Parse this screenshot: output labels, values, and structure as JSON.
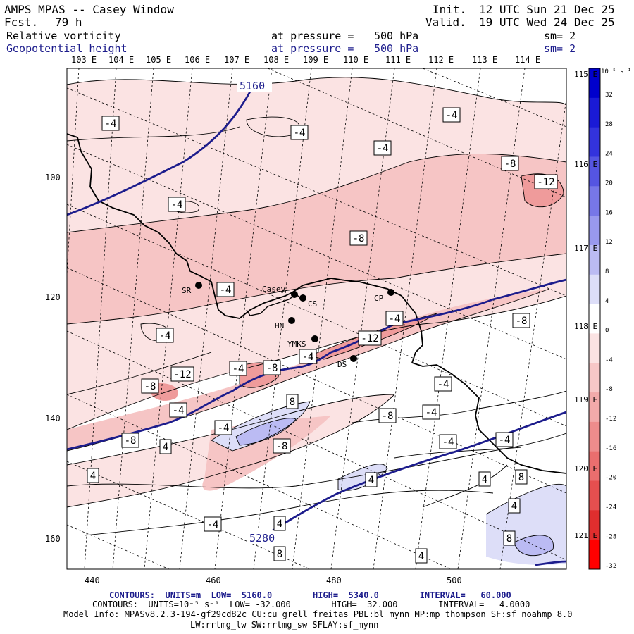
{
  "header": {
    "title": "AMPS MPAS -- Casey Window",
    "forecast_label": "Fcst.",
    "forecast_value": "79 h",
    "init_label": "Init.",
    "init_value": "12 UTC Sun 21 Dec 25",
    "valid_label": "Valid.",
    "valid_value": "19 UTC Wed 24 Dec 25"
  },
  "fields": [
    {
      "name": "Relative vorticity",
      "level_label": "at pressure =",
      "level": "500 hPa",
      "smoothing": "sm= 2",
      "color": "#000000"
    },
    {
      "name": "Geopotential height",
      "level_label": "at pressure =",
      "level": "500 hPa",
      "smoothing": "sm= 2",
      "color": "#1c1c8c"
    }
  ],
  "axes": {
    "top_lon_labels": [
      "103 E",
      "104 E",
      "105 E",
      "106 E",
      "107 E",
      "108 E",
      "109 E",
      "110 E",
      "111 E",
      "112 E",
      "113 E",
      "114 E"
    ],
    "right_lon_labels": [
      "115 E",
      "116 E",
      "117 E",
      "118 E",
      "119 E",
      "120 E",
      "121 E"
    ],
    "left_labels": [
      "100",
      "120",
      "140",
      "160"
    ],
    "bottom_labels": [
      "440",
      "460",
      "480",
      "500"
    ]
  },
  "colorbar": {
    "units": "10⁻⁵ s⁻¹",
    "levels": [
      32,
      28,
      24,
      20,
      16,
      12,
      8,
      4,
      0,
      -4,
      -8,
      -12,
      -16,
      -20,
      -24,
      -28,
      -32
    ],
    "colors": [
      "#0000cc",
      "#1a1ad6",
      "#3333dd",
      "#5555e2",
      "#7777e8",
      "#9999ee",
      "#bbbbf3",
      "#dddef8",
      "#ffffff",
      "#fbe3e3",
      "#f7c7c7",
      "#f2aaaa",
      "#ee8c8c",
      "#ea6e6e",
      "#e54f4f",
      "#e02e2e",
      "#ff0000"
    ]
  },
  "stations": [
    {
      "code": "SR"
    },
    {
      "code": "Casey"
    },
    {
      "code": "CS"
    },
    {
      "code": "CP"
    },
    {
      "code": "HN"
    },
    {
      "code": "YMKS"
    },
    {
      "code": "DS"
    }
  ],
  "height_contour_labels": [
    "5160",
    "5280"
  ],
  "vorticity_labels": [
    "-4",
    "-4",
    "-4",
    "-4",
    "-8",
    "-12",
    "-4",
    "-8",
    "-4",
    "-4",
    "-4",
    "-8",
    "-12",
    "-4",
    "-8",
    "-4",
    "-12",
    "-8",
    "-4",
    "-4",
    "-8",
    "-4",
    "8",
    "-4",
    "-8",
    "-4",
    "-8",
    "-4",
    "4",
    "4",
    "4",
    "8",
    "4",
    "4",
    "-4",
    "4",
    "8",
    "8",
    "4",
    "4"
  ],
  "footer": {
    "height_contours": "CONTOURS:  UNITS=m  LOW=  5160.0        HIGH=  5340.0        INTERVAL=   60.000",
    "vort_contours": "CONTOURS:  UNITS=10⁻⁵ s⁻¹  LOW= -32.000        HIGH=  32.000        INTERVAL=   4.0000",
    "model_info": "Model Info: MPASv8.2.3-194-gf29cd82c CU:cu_grell_freitas PBL:bl_mynn MP:mp_thompson SF:sf_noahmp 8.0",
    "model_info2": "LW:rrtmg_lw SW:rrtmg_sw SFLAY:sf_mynn"
  }
}
